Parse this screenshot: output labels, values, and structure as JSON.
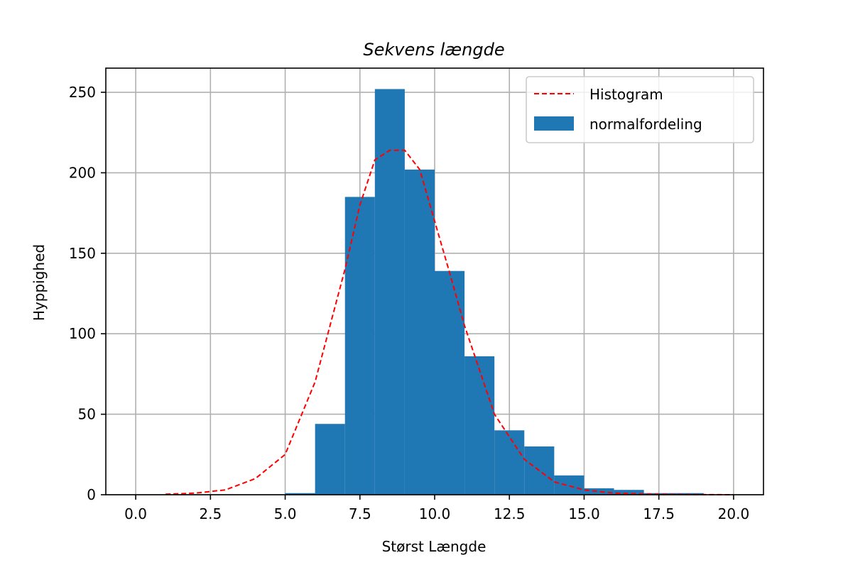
{
  "chart_data": {
    "type": "bar",
    "title": "Sekvens længde",
    "xlabel": "Størst Længde",
    "ylabel": "Hyppighed",
    "xlim": [
      -1.0,
      21.0
    ],
    "ylim": [
      0,
      265
    ],
    "grid": true,
    "legend_position": "top-right",
    "x_ticks": [
      "0.0",
      "2.5",
      "5.0",
      "7.5",
      "10.0",
      "12.5",
      "15.0",
      "17.5",
      "20.0"
    ],
    "x_tick_values": [
      0,
      2.5,
      5,
      7.5,
      10,
      12.5,
      15,
      17.5,
      20
    ],
    "y_ticks": [
      "0",
      "50",
      "100",
      "150",
      "200",
      "250"
    ],
    "y_tick_values": [
      0,
      50,
      100,
      150,
      200,
      250
    ],
    "bars": {
      "name": "normalfordeling",
      "color": "#1f77b4",
      "bin_edges": [
        1,
        2,
        3,
        4,
        5,
        6,
        7,
        8,
        9,
        10,
        11,
        12,
        13,
        14,
        15,
        16,
        17,
        18,
        19,
        20
      ],
      "values": [
        0,
        0,
        0,
        0,
        1,
        44,
        185,
        252,
        202,
        139,
        86,
        40,
        30,
        12,
        4,
        3,
        1,
        1,
        0
      ]
    },
    "line": {
      "name": "Histogram",
      "color": "#ff0000",
      "style": "dashed",
      "x": [
        1,
        2,
        3,
        4,
        5,
        6,
        7,
        7.5,
        8,
        8.5,
        9,
        9.5,
        10,
        10.5,
        11,
        12,
        13,
        14,
        15,
        16,
        17,
        18,
        19,
        20
      ],
      "y": [
        0.3,
        1,
        3,
        10,
        25,
        70,
        140,
        180,
        208,
        214,
        214,
        202,
        170,
        138,
        105,
        50,
        22,
        8,
        3,
        1,
        0.5,
        0.2,
        0.1,
        0
      ]
    }
  }
}
